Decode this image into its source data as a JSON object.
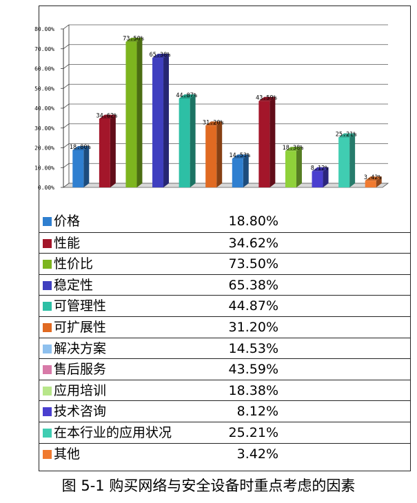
{
  "chart_data": {
    "type": "bar",
    "categories": [
      "价格",
      "性能",
      "性价比",
      "稳定性",
      "可管理性",
      "可扩展性",
      "解决方案",
      "售后服务",
      "应用培训",
      "技术咨询",
      "在本行业的应用状况",
      "其他"
    ],
    "values": [
      18.8,
      34.62,
      73.5,
      65.38,
      44.87,
      31.2,
      14.53,
      43.59,
      18.38,
      8.12,
      25.21,
      3.42
    ],
    "bar_labels": [
      "18.80%",
      "34.62%",
      "73.50%",
      "65.38%",
      "44.87%",
      "31.20%",
      "14.53%",
      "43.59%",
      "18.38%",
      "8.12%",
      "25.21%",
      "3.42%"
    ],
    "table_values": [
      "18.80%",
      "34.62%",
      "73.50%",
      "65.38%",
      "44.87%",
      "31.20%",
      "14.53%",
      "43.59%",
      "18.38%",
      "8.12%",
      "25.21%",
      "3.42%"
    ],
    "y_ticks": [
      "0.00%",
      "10.00%",
      "20.00%",
      "30.00%",
      "40.00%",
      "50.00%",
      "60.00%",
      "70.00%",
      "80.00%"
    ],
    "ylim": [
      0,
      80
    ],
    "grid": true,
    "style": "3d-column",
    "colors": [
      "#2f7fd0",
      "#a3162a",
      "#7db51f",
      "#3f3fbf",
      "#2dbfa5",
      "#e06a22",
      "#2f7fd0",
      "#a3162a",
      "#8fd13a",
      "#4a3fcf",
      "#40cdb2",
      "#f07a30"
    ],
    "legend_colors": [
      "#2f7fd0",
      "#a3162a",
      "#7db51f",
      "#3f3fbf",
      "#2dbfa5",
      "#e06a22",
      "#8ec0ee",
      "#d87aa8",
      "#b8e68a",
      "#4a3fcf",
      "#40cdb2",
      "#f07a30"
    ],
    "caption": "图 5-1 购买网络与安全设备时重点考虑的因素"
  }
}
